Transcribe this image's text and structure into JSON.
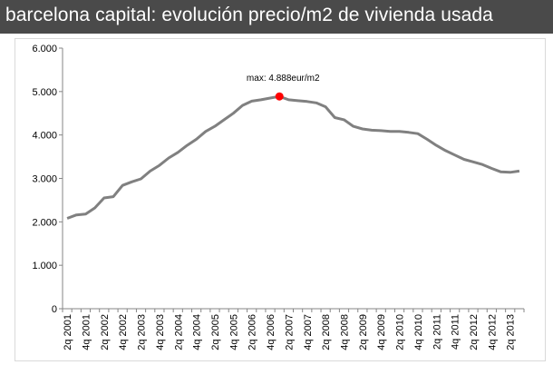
{
  "header": {
    "title": "barcelona capital: evolución  precio/m2 de vivienda  usada"
  },
  "colors": {
    "title_background": "#4a4a4a",
    "line": "#808080",
    "marker": "#ff0000"
  },
  "chart_data": {
    "type": "line",
    "title": "barcelona capital: evolución  precio/m2 de vivienda  usada",
    "xlabel": "",
    "ylabel": "",
    "ylim": [
      0,
      6000
    ],
    "yticks": [
      0,
      1000,
      2000,
      3000,
      4000,
      5000,
      6000
    ],
    "ytick_labels": [
      "0",
      "1.000",
      "2.000",
      "3.000",
      "4.000",
      "5.000",
      "6.000"
    ],
    "grid": false,
    "x_tick_labels": [
      "2q 2001",
      "4q 2001",
      "2q 2002",
      "4q 2002",
      "2q 2003",
      "4q 2003",
      "2q 2004",
      "4q 2004",
      "2q 2005",
      "4q 2005",
      "2q 2006",
      "4q 2006",
      "2q 2007",
      "4q 2007",
      "2q 2008",
      "4q 2008",
      "2q 2009",
      "4q 2009",
      "2q 2010",
      "4q 2010",
      "2q 2011",
      "4q 2011",
      "2q 2012",
      "4q 2012",
      "2q 2013"
    ],
    "x": [
      "2q 2001",
      "3q 2001",
      "4q 2001",
      "1q 2002",
      "2q 2002",
      "3q 2002",
      "4q 2002",
      "1q 2003",
      "2q 2003",
      "3q 2003",
      "4q 2003",
      "1q 2004",
      "2q 2004",
      "3q 2004",
      "4q 2004",
      "1q 2005",
      "2q 2005",
      "3q 2005",
      "4q 2005",
      "1q 2006",
      "2q 2006",
      "3q 2006",
      "4q 2006",
      "1q 2007",
      "2q 2007",
      "3q 2007",
      "4q 2007",
      "1q 2008",
      "2q 2008",
      "3q 2008",
      "4q 2008",
      "1q 2009",
      "2q 2009",
      "3q 2009",
      "4q 2009",
      "1q 2010",
      "2q 2010",
      "3q 2010",
      "4q 2010",
      "1q 2011",
      "2q 2011",
      "3q 2011",
      "4q 2011",
      "1q 2012",
      "2q 2012",
      "3q 2012",
      "4q 2012",
      "1q 2013",
      "2q 2013",
      "3q 2013"
    ],
    "series": [
      {
        "values": [
          2080,
          2160,
          2180,
          2320,
          2550,
          2580,
          2840,
          2920,
          2990,
          3170,
          3300,
          3470,
          3600,
          3760,
          3900,
          4080,
          4200,
          4350,
          4500,
          4680,
          4780,
          4810,
          4850,
          4888,
          4810,
          4790,
          4770,
          4740,
          4650,
          4400,
          4350,
          4200,
          4140,
          4110,
          4100,
          4080,
          4080,
          4060,
          4030,
          3900,
          3760,
          3640,
          3540,
          3440,
          3380,
          3320,
          3230,
          3150,
          3140,
          3170
        ]
      }
    ],
    "annotation": {
      "text": "max: 4.888eur/m2",
      "x": "1q 2007",
      "y": 4888
    }
  }
}
